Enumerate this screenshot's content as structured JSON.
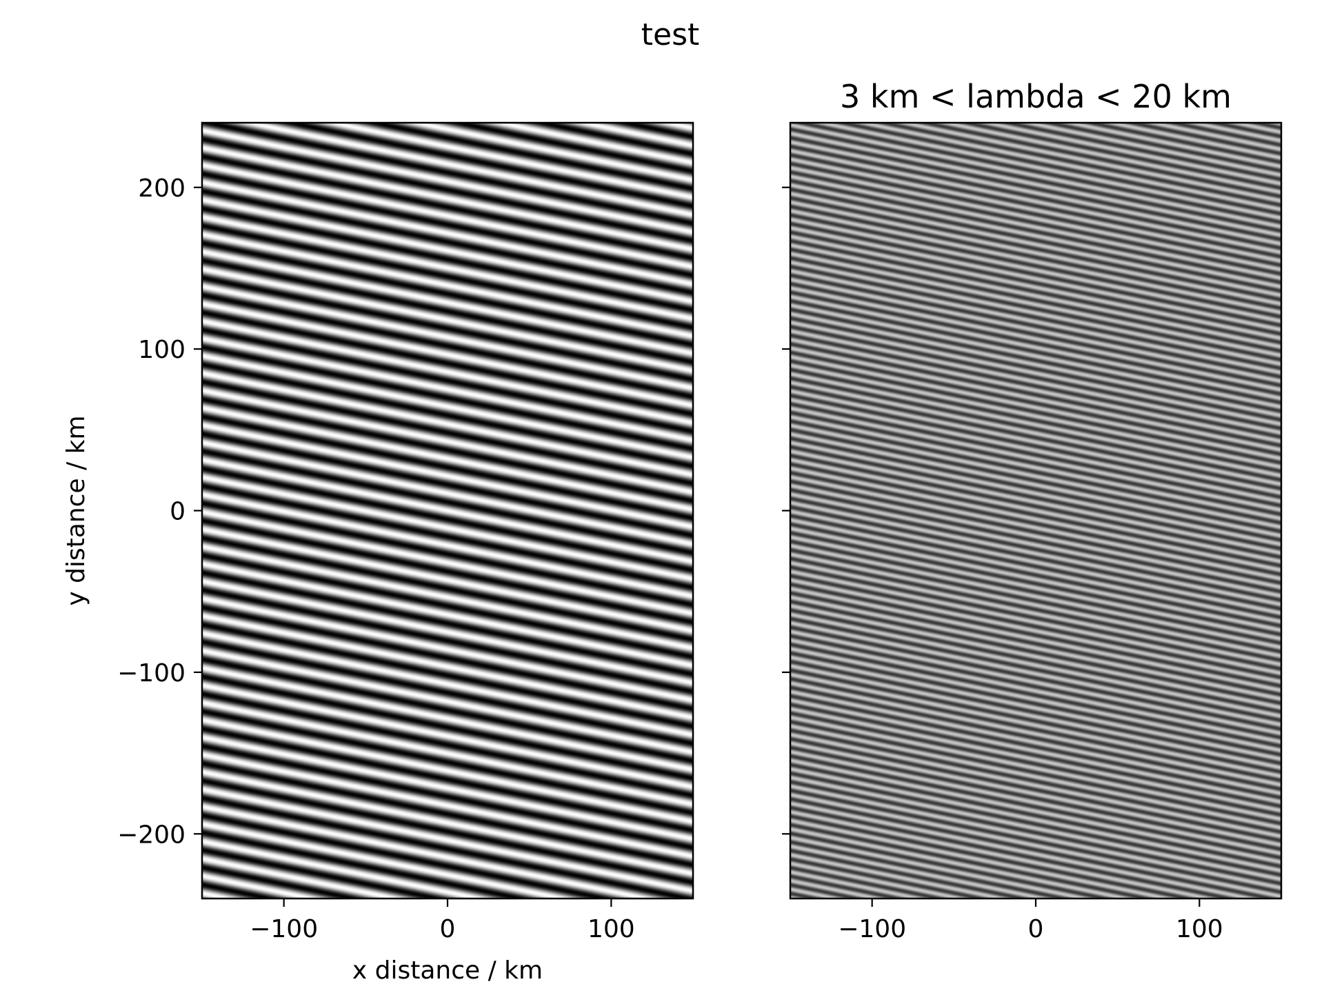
{
  "chart_data": {
    "title": "test",
    "colormap": "gray",
    "panels": [
      {
        "type": "heatmap",
        "title": "",
        "xlabel": "x distance / km",
        "ylabel": "y distance / km",
        "xlim": [
          -150,
          150
        ],
        "ylim": [
          -240,
          240
        ],
        "xticks": [
          -100,
          0,
          100
        ],
        "xticklabels": [
          "−100",
          "0",
          "100"
        ],
        "yticks": [
          -200,
          -100,
          0,
          100,
          200
        ],
        "yticklabels": [
          "−200",
          "−100",
          "0",
          "100",
          "200"
        ],
        "show_yticklabels": true,
        "field": "sinusoidal wave pattern",
        "wavelength_km": 10.5,
        "stripe_slope": -0.21,
        "value_range": [
          -1,
          1
        ]
      },
      {
        "type": "heatmap",
        "title": "3 km < lambda < 20 km",
        "xlabel": "",
        "ylabel": "",
        "xlim": [
          -150,
          150
        ],
        "ylim": [
          -240,
          240
        ],
        "xticks": [
          -100,
          0,
          100
        ],
        "xticklabels": [
          "−100",
          "0",
          "100"
        ],
        "yticks": [
          -200,
          -100,
          0,
          100,
          200
        ],
        "show_yticklabels": false,
        "field": "band-pass filtered wave pattern",
        "wavelength_km": 5.2,
        "stripe_slope": -0.21,
        "value_range": [
          -0.6,
          0.6
        ]
      }
    ]
  }
}
